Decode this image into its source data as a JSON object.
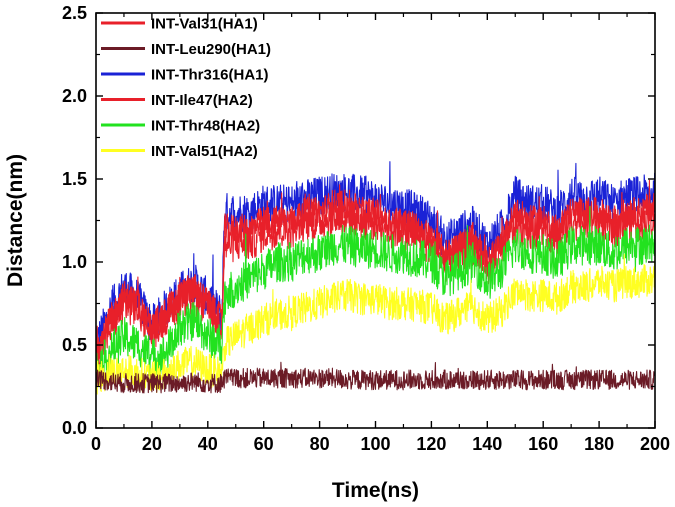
{
  "chart_data": {
    "type": "line",
    "title": "",
    "xlabel": "Time(ns)",
    "ylabel": "Distance(nm)",
    "xlim": [
      0,
      200
    ],
    "ylim": [
      0.0,
      2.5
    ],
    "xticks": [
      0,
      20,
      40,
      60,
      80,
      100,
      120,
      140,
      160,
      180,
      200
    ],
    "yticks": [
      0.0,
      0.5,
      1.0,
      1.5,
      2.0,
      2.5
    ],
    "xtick_labels": [
      "0",
      "20",
      "40",
      "60",
      "80",
      "100",
      "120",
      "140",
      "160",
      "180",
      "200"
    ],
    "ytick_labels": [
      "0.0",
      "0.5",
      "1.0",
      "1.5",
      "2.0",
      "2.5"
    ],
    "legend_position": "top-left",
    "grid": false,
    "series": [
      {
        "name": "INT-Val31(HA1)",
        "color": "#e8202a",
        "x": [
          0,
          5,
          10,
          15,
          20,
          25,
          30,
          35,
          40,
          45,
          46,
          50,
          55,
          60,
          65,
          70,
          75,
          80,
          85,
          90,
          95,
          100,
          105,
          110,
          115,
          120,
          125,
          130,
          135,
          140,
          145,
          150,
          155,
          160,
          165,
          170,
          175,
          180,
          185,
          190,
          195,
          200
        ],
        "y": [
          0.45,
          0.65,
          0.8,
          0.75,
          0.6,
          0.7,
          0.8,
          0.85,
          0.75,
          0.65,
          1.2,
          1.2,
          1.2,
          1.25,
          1.25,
          1.25,
          1.3,
          1.3,
          1.35,
          1.35,
          1.3,
          1.3,
          1.25,
          1.25,
          1.2,
          1.15,
          1.05,
          1.1,
          1.15,
          1.0,
          1.1,
          1.3,
          1.25,
          1.25,
          1.2,
          1.3,
          1.3,
          1.3,
          1.25,
          1.3,
          1.3,
          1.35
        ]
      },
      {
        "name": "INT-Leu290(HA1)",
        "color": "#6b1b26",
        "x": [
          0,
          5,
          10,
          15,
          20,
          25,
          30,
          35,
          40,
          45,
          46,
          50,
          55,
          60,
          65,
          70,
          75,
          80,
          85,
          90,
          95,
          100,
          105,
          110,
          115,
          120,
          125,
          130,
          135,
          140,
          145,
          150,
          155,
          160,
          165,
          170,
          175,
          180,
          185,
          190,
          195,
          200
        ],
        "y": [
          0.3,
          0.28,
          0.27,
          0.27,
          0.27,
          0.27,
          0.27,
          0.28,
          0.27,
          0.27,
          0.3,
          0.3,
          0.3,
          0.3,
          0.3,
          0.3,
          0.3,
          0.3,
          0.3,
          0.29,
          0.29,
          0.29,
          0.29,
          0.29,
          0.29,
          0.29,
          0.29,
          0.29,
          0.29,
          0.29,
          0.29,
          0.29,
          0.29,
          0.29,
          0.29,
          0.29,
          0.29,
          0.29,
          0.29,
          0.29,
          0.29,
          0.29
        ]
      },
      {
        "name": "INT-Thr316(HA1)",
        "color": "#1a22d6",
        "x": [
          0,
          5,
          10,
          15,
          20,
          25,
          30,
          35,
          40,
          45,
          46,
          50,
          55,
          60,
          65,
          70,
          75,
          80,
          85,
          90,
          95,
          100,
          105,
          110,
          115,
          120,
          125,
          130,
          135,
          140,
          145,
          150,
          155,
          160,
          165,
          170,
          175,
          180,
          185,
          190,
          195,
          200
        ],
        "y": [
          0.5,
          0.7,
          0.85,
          0.78,
          0.62,
          0.72,
          0.82,
          0.88,
          0.78,
          0.68,
          1.3,
          1.3,
          1.3,
          1.35,
          1.35,
          1.35,
          1.38,
          1.4,
          1.42,
          1.42,
          1.4,
          1.38,
          1.35,
          1.33,
          1.3,
          1.25,
          1.12,
          1.18,
          1.22,
          1.1,
          1.2,
          1.4,
          1.35,
          1.35,
          1.3,
          1.4,
          1.38,
          1.4,
          1.35,
          1.4,
          1.4,
          1.42
        ]
      },
      {
        "name": "INT-Ile47(HA2)",
        "color": "#e8202a",
        "x": [
          0,
          5,
          10,
          15,
          20,
          25,
          30,
          35,
          40,
          45,
          46,
          50,
          55,
          60,
          65,
          70,
          75,
          80,
          85,
          90,
          95,
          100,
          105,
          110,
          115,
          120,
          125,
          130,
          135,
          140,
          145,
          150,
          155,
          160,
          165,
          170,
          175,
          180,
          185,
          190,
          195,
          200
        ],
        "y": [
          0.42,
          0.6,
          0.75,
          0.72,
          0.58,
          0.68,
          0.75,
          0.8,
          0.72,
          0.62,
          1.1,
          1.12,
          1.12,
          1.18,
          1.2,
          1.2,
          1.25,
          1.25,
          1.28,
          1.28,
          1.25,
          1.25,
          1.2,
          1.2,
          1.15,
          1.1,
          1.0,
          1.05,
          1.1,
          0.97,
          1.05,
          1.22,
          1.2,
          1.2,
          1.15,
          1.25,
          1.25,
          1.25,
          1.2,
          1.25,
          1.25,
          1.28
        ]
      },
      {
        "name": "INT-Thr48(HA2)",
        "color": "#22e21f",
        "x": [
          0,
          5,
          10,
          15,
          20,
          25,
          30,
          35,
          40,
          45,
          46,
          50,
          55,
          60,
          65,
          70,
          75,
          80,
          85,
          90,
          95,
          100,
          105,
          110,
          115,
          120,
          125,
          130,
          135,
          140,
          145,
          150,
          155,
          160,
          165,
          170,
          175,
          180,
          185,
          190,
          195,
          200
        ],
        "y": [
          0.35,
          0.45,
          0.55,
          0.5,
          0.42,
          0.45,
          0.6,
          0.65,
          0.55,
          0.5,
          0.8,
          0.85,
          0.9,
          0.95,
          1.0,
          1.0,
          1.05,
          1.05,
          1.1,
          1.1,
          1.08,
          1.08,
          1.05,
          1.05,
          1.02,
          1.0,
          0.9,
          0.95,
          1.0,
          0.88,
          0.95,
          1.1,
          1.05,
          1.05,
          1.0,
          1.1,
          1.1,
          1.1,
          1.05,
          1.1,
          1.1,
          1.12
        ]
      },
      {
        "name": "INT-Val51(HA2)",
        "color": "#ffff22",
        "x": [
          0,
          5,
          10,
          15,
          20,
          25,
          30,
          35,
          40,
          45,
          46,
          50,
          55,
          60,
          65,
          70,
          75,
          80,
          85,
          90,
          95,
          100,
          105,
          110,
          115,
          120,
          125,
          130,
          135,
          140,
          145,
          150,
          155,
          160,
          165,
          170,
          175,
          180,
          185,
          190,
          195,
          200
        ],
        "y": [
          0.3,
          0.33,
          0.35,
          0.33,
          0.3,
          0.32,
          0.38,
          0.4,
          0.35,
          0.33,
          0.5,
          0.55,
          0.6,
          0.65,
          0.68,
          0.7,
          0.72,
          0.75,
          0.78,
          0.8,
          0.78,
          0.78,
          0.75,
          0.75,
          0.74,
          0.72,
          0.65,
          0.7,
          0.73,
          0.65,
          0.7,
          0.82,
          0.8,
          0.8,
          0.78,
          0.85,
          0.85,
          0.88,
          0.85,
          0.88,
          0.88,
          0.9
        ]
      }
    ]
  }
}
